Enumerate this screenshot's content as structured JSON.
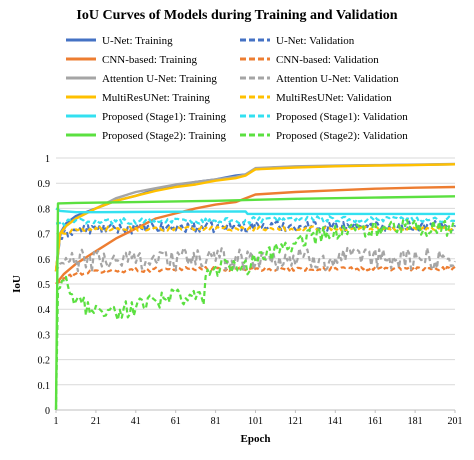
{
  "chart_data": {
    "type": "line",
    "title": "IoU Curves of Models during Training and Validation",
    "xlabel": "Epoch",
    "ylabel": "IoU",
    "xlim": [
      1,
      201
    ],
    "ylim": [
      0,
      1
    ],
    "x_ticks": [
      1,
      21,
      41,
      61,
      81,
      101,
      121,
      141,
      161,
      181,
      201
    ],
    "y_ticks": [
      "0",
      "0.1",
      "0.2",
      "0.3",
      "0.4",
      "0.5",
      "0.6",
      "0.7",
      "0.8",
      "0.9",
      "1"
    ],
    "grid": "horizontal",
    "legend_position": "top",
    "series": [
      {
        "name": "U-Net: Training",
        "color": "#4472C4",
        "dash": false,
        "points": [
          [
            1,
            0.55
          ],
          [
            3,
            0.7
          ],
          [
            6,
            0.74
          ],
          [
            11,
            0.77
          ],
          [
            21,
            0.8
          ],
          [
            31,
            0.83
          ],
          [
            41,
            0.85
          ],
          [
            51,
            0.875
          ],
          [
            61,
            0.89
          ],
          [
            71,
            0.905
          ],
          [
            81,
            0.915
          ],
          [
            91,
            0.93
          ],
          [
            96,
            0.935
          ],
          [
            101,
            0.955
          ],
          [
            111,
            0.963
          ],
          [
            131,
            0.967
          ],
          [
            151,
            0.97
          ],
          [
            181,
            0.973
          ],
          [
            201,
            0.975
          ]
        ]
      },
      {
        "name": "U-Net: Validation",
        "color": "#4472C4",
        "dash": true,
        "noise": 0.02,
        "points": [
          [
            1,
            0.55
          ],
          [
            3,
            0.68
          ],
          [
            8,
            0.71
          ],
          [
            21,
            0.72
          ],
          [
            41,
            0.72
          ],
          [
            61,
            0.725
          ],
          [
            81,
            0.725
          ],
          [
            101,
            0.73
          ],
          [
            141,
            0.73
          ],
          [
            201,
            0.73
          ]
        ]
      },
      {
        "name": "CNN-based: Training",
        "color": "#ED7D31",
        "dash": false,
        "points": [
          [
            1,
            0.5
          ],
          [
            5,
            0.54
          ],
          [
            11,
            0.58
          ],
          [
            21,
            0.63
          ],
          [
            31,
            0.68
          ],
          [
            41,
            0.72
          ],
          [
            51,
            0.76
          ],
          [
            61,
            0.78
          ],
          [
            71,
            0.8
          ],
          [
            81,
            0.815
          ],
          [
            91,
            0.825
          ],
          [
            101,
            0.855
          ],
          [
            121,
            0.865
          ],
          [
            141,
            0.872
          ],
          [
            161,
            0.878
          ],
          [
            181,
            0.882
          ],
          [
            201,
            0.885
          ]
        ]
      },
      {
        "name": "CNN-based: Validation",
        "color": "#ED7D31",
        "dash": true,
        "noise": 0.008,
        "points": [
          [
            1,
            0.5
          ],
          [
            5,
            0.52
          ],
          [
            11,
            0.54
          ],
          [
            21,
            0.55
          ],
          [
            41,
            0.555
          ],
          [
            61,
            0.56
          ],
          [
            81,
            0.56
          ],
          [
            101,
            0.56
          ],
          [
            141,
            0.56
          ],
          [
            201,
            0.56
          ]
        ]
      },
      {
        "name": "Attention U-Net: Training",
        "color": "#A5A5A5",
        "dash": false,
        "points": [
          [
            1,
            0.55
          ],
          [
            3,
            0.69
          ],
          [
            6,
            0.73
          ],
          [
            11,
            0.76
          ],
          [
            21,
            0.8
          ],
          [
            31,
            0.84
          ],
          [
            41,
            0.865
          ],
          [
            51,
            0.88
          ],
          [
            61,
            0.895
          ],
          [
            71,
            0.905
          ],
          [
            81,
            0.915
          ],
          [
            91,
            0.925
          ],
          [
            96,
            0.935
          ],
          [
            101,
            0.96
          ],
          [
            121,
            0.967
          ],
          [
            141,
            0.97
          ],
          [
            161,
            0.972
          ],
          [
            181,
            0.974
          ],
          [
            201,
            0.976
          ]
        ]
      },
      {
        "name": "Attention U-Net: Validation",
        "color": "#A5A5A5",
        "dash": true,
        "noise": 0.045,
        "points": [
          [
            1,
            0.55
          ],
          [
            3,
            0.58
          ],
          [
            11,
            0.59
          ],
          [
            41,
            0.6
          ],
          [
            81,
            0.6
          ],
          [
            121,
            0.6
          ],
          [
            161,
            0.6
          ],
          [
            201,
            0.6
          ]
        ]
      },
      {
        "name": "MultiResUNet: Training",
        "color": "#FFC000",
        "dash": false,
        "points": [
          [
            1,
            0.55
          ],
          [
            3,
            0.7
          ],
          [
            6,
            0.73
          ],
          [
            11,
            0.76
          ],
          [
            21,
            0.8
          ],
          [
            31,
            0.83
          ],
          [
            41,
            0.85
          ],
          [
            51,
            0.87
          ],
          [
            61,
            0.885
          ],
          [
            71,
            0.895
          ],
          [
            81,
            0.91
          ],
          [
            91,
            0.92
          ],
          [
            96,
            0.93
          ],
          [
            101,
            0.955
          ],
          [
            121,
            0.962
          ],
          [
            141,
            0.967
          ],
          [
            161,
            0.97
          ],
          [
            181,
            0.972
          ],
          [
            201,
            0.975
          ]
        ]
      },
      {
        "name": "MultiResUNet: Validation",
        "color": "#FFC000",
        "dash": true,
        "noise": 0.008,
        "points": [
          [
            1,
            0.55
          ],
          [
            3,
            0.7
          ],
          [
            11,
            0.715
          ],
          [
            21,
            0.72
          ],
          [
            61,
            0.72
          ],
          [
            101,
            0.72
          ],
          [
            161,
            0.72
          ],
          [
            201,
            0.72
          ]
        ]
      },
      {
        "name": "Proposed (Stage1): Training",
        "color": "#33E0F0",
        "dash": false,
        "points": [
          [
            1,
            0.8
          ],
          [
            3,
            0.79
          ],
          [
            11,
            0.785
          ],
          [
            21,
            0.785
          ],
          [
            61,
            0.787
          ],
          [
            96,
            0.788
          ],
          [
            97,
            0.778
          ],
          [
            121,
            0.778
          ],
          [
            161,
            0.778
          ],
          [
            201,
            0.778
          ]
        ]
      },
      {
        "name": "Proposed (Stage1): Validation",
        "color": "#33E0F0",
        "dash": true,
        "noise": 0.012,
        "points": [
          [
            1,
            0.74
          ],
          [
            11,
            0.75
          ],
          [
            41,
            0.75
          ],
          [
            81,
            0.75
          ],
          [
            97,
            0.75
          ],
          [
            101,
            0.755
          ],
          [
            141,
            0.757
          ],
          [
            201,
            0.757
          ]
        ]
      },
      {
        "name": "Proposed (Stage2): Training",
        "color": "#5BE040",
        "dash": false,
        "points": [
          [
            1,
            0.0
          ],
          [
            2,
            0.82
          ],
          [
            11,
            0.822
          ],
          [
            41,
            0.825
          ],
          [
            81,
            0.83
          ],
          [
            121,
            0.838
          ],
          [
            161,
            0.843
          ],
          [
            201,
            0.848
          ]
        ]
      },
      {
        "name": "Proposed (Stage2): Validation",
        "color": "#5BE040",
        "dash": true,
        "noise": 0.035,
        "points": [
          [
            1,
            0.0
          ],
          [
            2,
            0.48
          ],
          [
            6,
            0.5
          ],
          [
            11,
            0.42
          ],
          [
            21,
            0.4
          ],
          [
            31,
            0.39
          ],
          [
            41,
            0.41
          ],
          [
            51,
            0.43
          ],
          [
            61,
            0.45
          ],
          [
            71,
            0.44
          ],
          [
            75,
            0.45
          ],
          [
            76,
            0.55
          ],
          [
            81,
            0.56
          ],
          [
            91,
            0.57
          ],
          [
            99,
            0.57
          ],
          [
            101,
            0.6
          ],
          [
            111,
            0.63
          ],
          [
            121,
            0.67
          ],
          [
            131,
            0.69
          ],
          [
            141,
            0.7
          ],
          [
            161,
            0.715
          ],
          [
            181,
            0.72
          ],
          [
            201,
            0.72
          ]
        ]
      }
    ]
  }
}
